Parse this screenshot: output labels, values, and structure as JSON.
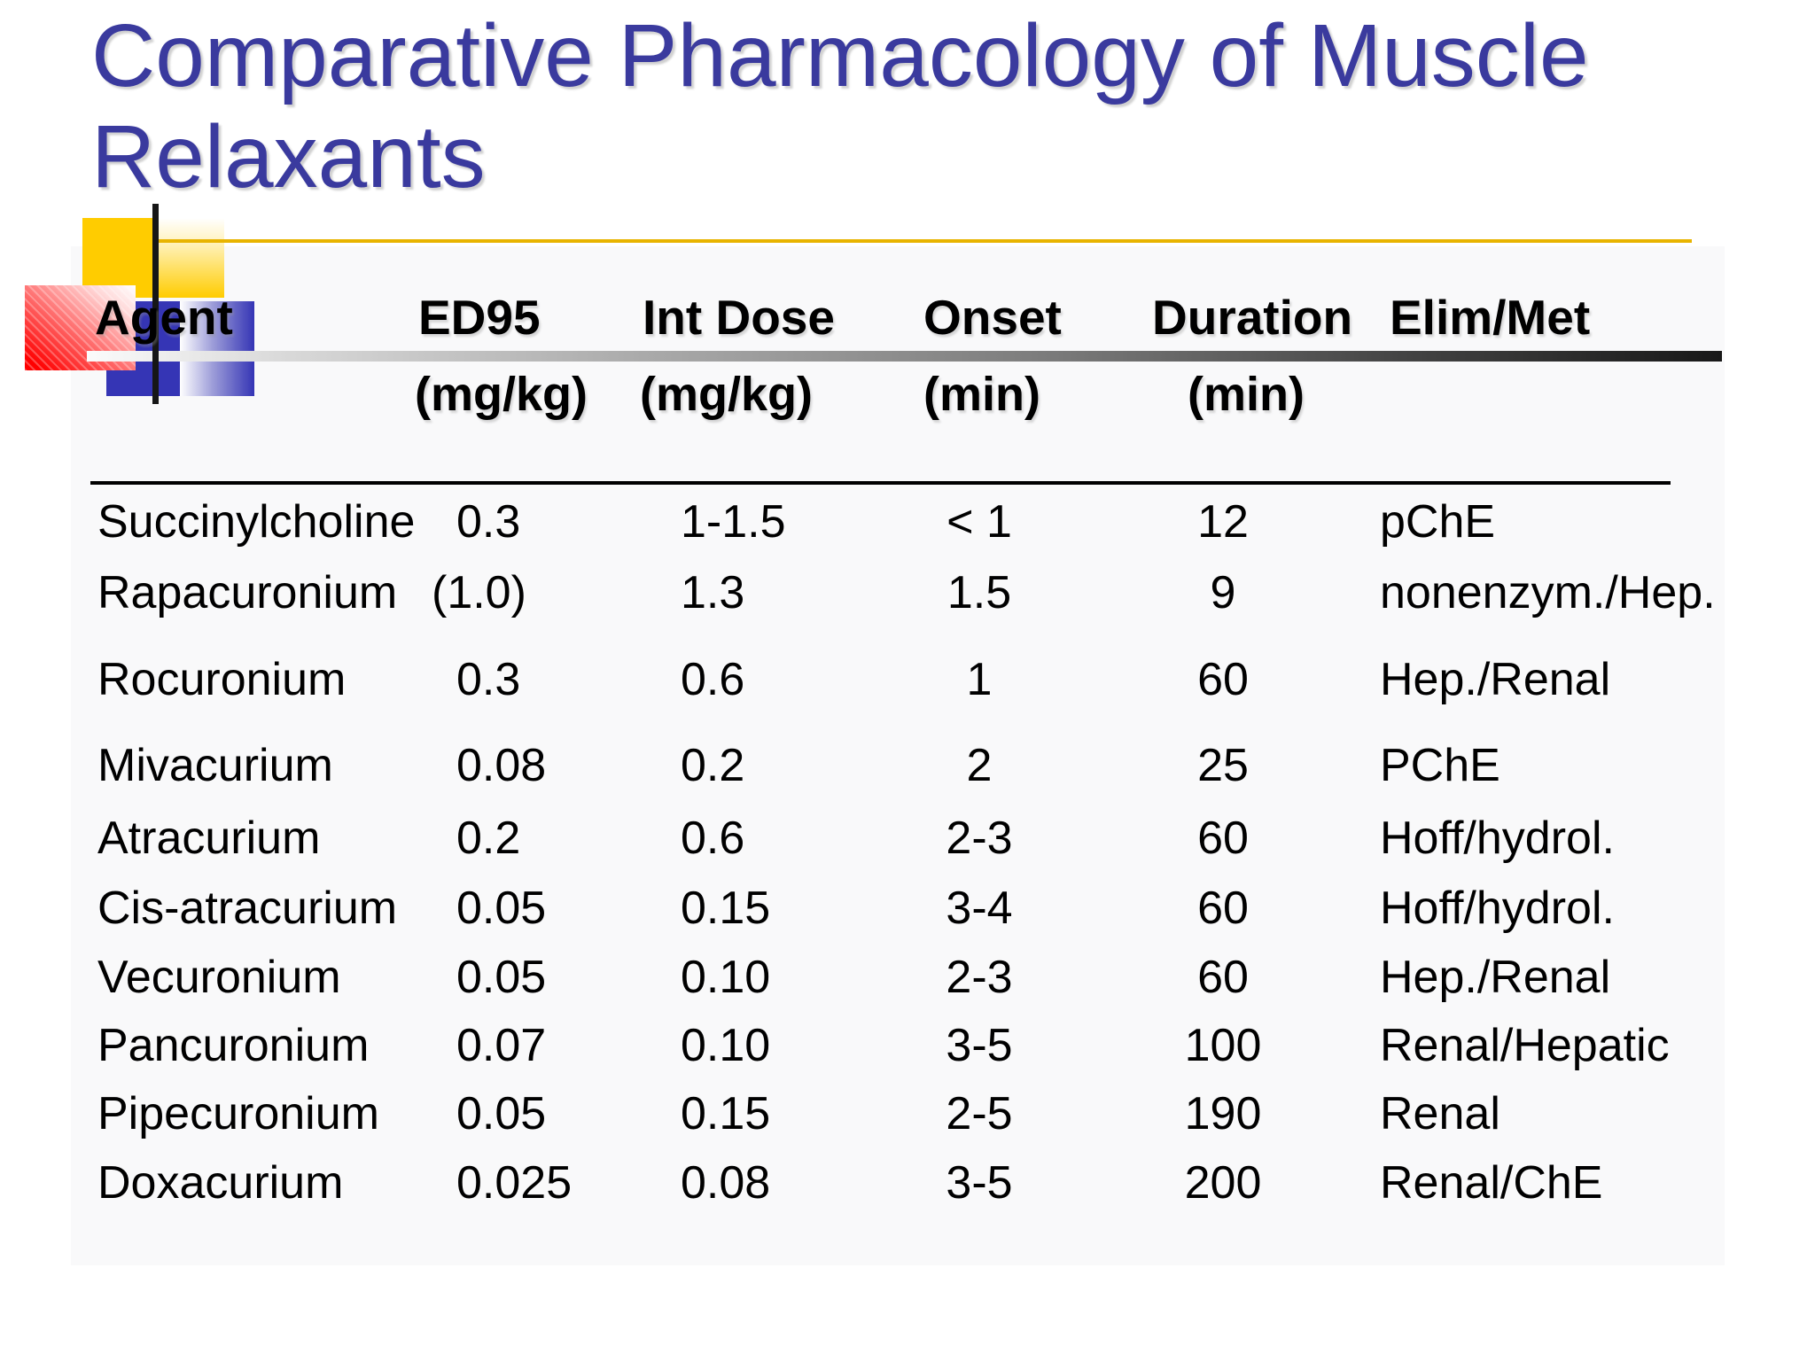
{
  "title": {
    "line1": "Comparative Pharmacology of Muscle",
    "line2": "Relaxants"
  },
  "table": {
    "columns": [
      {
        "label": "Agent",
        "unit": ""
      },
      {
        "label": "ED95",
        "unit": "(mg/kg)"
      },
      {
        "label": "Int Dose",
        "unit": "(mg/kg)"
      },
      {
        "label": "Onset",
        "unit": "(min)"
      },
      {
        "label": "Duration",
        "unit": "(min)"
      },
      {
        "label": "Elim/Met",
        "unit": ""
      }
    ],
    "rows": [
      {
        "agent": "Succinylcholine",
        "ed95": "0.3",
        "int_dose": "1-1.5",
        "onset": "< 1",
        "duration": "12",
        "elim_met": "pChE"
      },
      {
        "agent": "Rapacuronium",
        "ed95": "(1.0)",
        "int_dose": "1.3",
        "onset": "1.5",
        "duration": "9",
        "elim_met": "nonenzym./Hep."
      },
      {
        "agent": "Rocuronium",
        "ed95": "0.3",
        "int_dose": "0.6",
        "onset": "1",
        "duration": "60",
        "elim_met": "Hep./Renal"
      },
      {
        "agent": "Mivacurium",
        "ed95": "0.08",
        "int_dose": "0.2",
        "onset": "2",
        "duration": "25",
        "elim_met": "PChE"
      },
      {
        "agent": "Atracurium",
        "ed95": "0.2",
        "int_dose": "0.6",
        "onset": "2-3",
        "duration": "60",
        "elim_met": "Hoff/hydrol."
      },
      {
        "agent": "Cis-atracurium",
        "ed95": "0.05",
        "int_dose": "0.15",
        "onset": "3-4",
        "duration": "60",
        "elim_met": "Hoff/hydrol."
      },
      {
        "agent": "Vecuronium",
        "ed95": "0.05",
        "int_dose": "0.10",
        "onset": "2-3",
        "duration": "60",
        "elim_met": "Hep./Renal"
      },
      {
        "agent": "Pancuronium",
        "ed95": "0.07",
        "int_dose": "0.10",
        "onset": "3-5",
        "duration": "100",
        "elim_met": "Renal/Hepatic"
      },
      {
        "agent": "Pipecuronium",
        "ed95": "0.05",
        "int_dose": "0.15",
        "onset": "2-5",
        "duration": "190",
        "elim_met": "Renal"
      },
      {
        "agent": "Doxacurium",
        "ed95": "0.025",
        "int_dose": "0.08",
        "onset": "3-5",
        "duration": "200",
        "elim_met": "Renal/ChE"
      }
    ]
  },
  "colors": {
    "title_color": "#3a3a9e",
    "accent_yellow": "#FFCC00",
    "accent_red": "#FF0000",
    "accent_blue": "#3535B5",
    "line_yellow": "#E8B400"
  }
}
